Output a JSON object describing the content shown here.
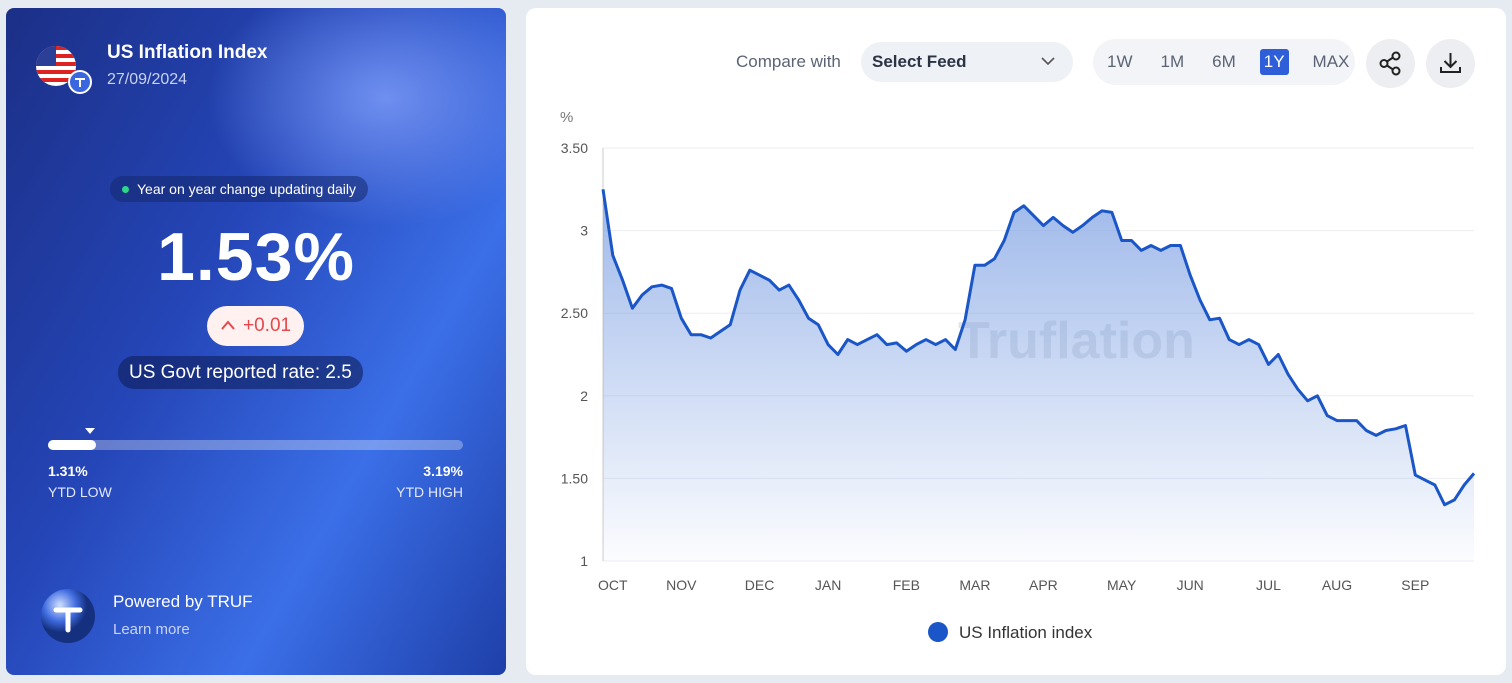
{
  "header": {
    "title": "US Inflation Index",
    "date": "27/09/2024"
  },
  "status": "Year on year change updating daily",
  "current_value": "1.53%",
  "change": "+0.01",
  "govt_rate": "US Govt reported rate: 2.5",
  "ytd": {
    "low": "1.31%",
    "low_label": "YTD LOW",
    "high": "3.19%",
    "high_label": "YTD HIGH"
  },
  "footer": {
    "powered": "Powered by TRUF",
    "link": "Learn more"
  },
  "controls": {
    "compare_label": "Compare with",
    "feed_select": "Select Feed",
    "periods": [
      "1W",
      "1M",
      "6M",
      "1Y",
      "MAX"
    ],
    "active_period": 3
  },
  "watermark": "Truflation",
  "chart_data": {
    "type": "line",
    "y_label": "%",
    "categories": [
      null,
      "OCT",
      null,
      null,
      null,
      null,
      null,
      null,
      "NOV",
      null,
      null,
      null,
      null,
      null,
      null,
      null,
      "DEC",
      null,
      null,
      null,
      null,
      null,
      null,
      "JAN",
      null,
      null,
      null,
      null,
      null,
      null,
      null,
      "FEB",
      null,
      null,
      null,
      null,
      null,
      null,
      "MAR",
      null,
      null,
      null,
      null,
      null,
      null,
      "APR",
      null,
      null,
      null,
      null,
      null,
      null,
      null,
      "MAY",
      null,
      null,
      null,
      null,
      null,
      null,
      "JUN",
      null,
      null,
      null,
      null,
      null,
      null,
      null,
      "JUL",
      null,
      null,
      null,
      null,
      null,
      null,
      "AUG",
      null,
      null,
      null,
      null,
      null,
      null,
      null,
      "SEP",
      null,
      null,
      null,
      null,
      null,
      null
    ],
    "series": [
      {
        "name": "US Inflation index",
        "color": "#1a56c8",
        "values": [
          3.25,
          2.85,
          2.7,
          2.53,
          2.61,
          2.66,
          2.67,
          2.65,
          2.47,
          2.37,
          2.37,
          2.35,
          2.39,
          2.43,
          2.64,
          2.76,
          2.73,
          2.7,
          2.64,
          2.67,
          2.58,
          2.47,
          2.43,
          2.31,
          2.25,
          2.34,
          2.31,
          2.34,
          2.37,
          2.31,
          2.32,
          2.27,
          2.31,
          2.34,
          2.31,
          2.34,
          2.28,
          2.46,
          2.79,
          2.79,
          2.83,
          2.94,
          3.11,
          3.15,
          3.09,
          3.03,
          3.08,
          3.03,
          2.99,
          3.03,
          3.08,
          3.12,
          3.11,
          2.94,
          2.94,
          2.88,
          2.91,
          2.88,
          2.91,
          2.91,
          2.73,
          2.58,
          2.46,
          2.47,
          2.34,
          2.31,
          2.34,
          2.31,
          2.19,
          2.25,
          2.13,
          2.04,
          1.97,
          2.0,
          1.88,
          1.85,
          1.85,
          1.85,
          1.79,
          1.76,
          1.79,
          1.8,
          1.82,
          1.52,
          1.49,
          1.46,
          1.34,
          1.37,
          1.46,
          1.53
        ]
      }
    ],
    "ylim": [
      1,
      3.5
    ],
    "yticks": [
      1,
      {
        "value": 1.5,
        "label": "1.50"
      },
      2,
      {
        "value": 2.5,
        "label": "2.50"
      },
      3,
      {
        "value": 3.5,
        "label": "3.50"
      }
    ],
    "grid": true,
    "legend": "bottom"
  }
}
